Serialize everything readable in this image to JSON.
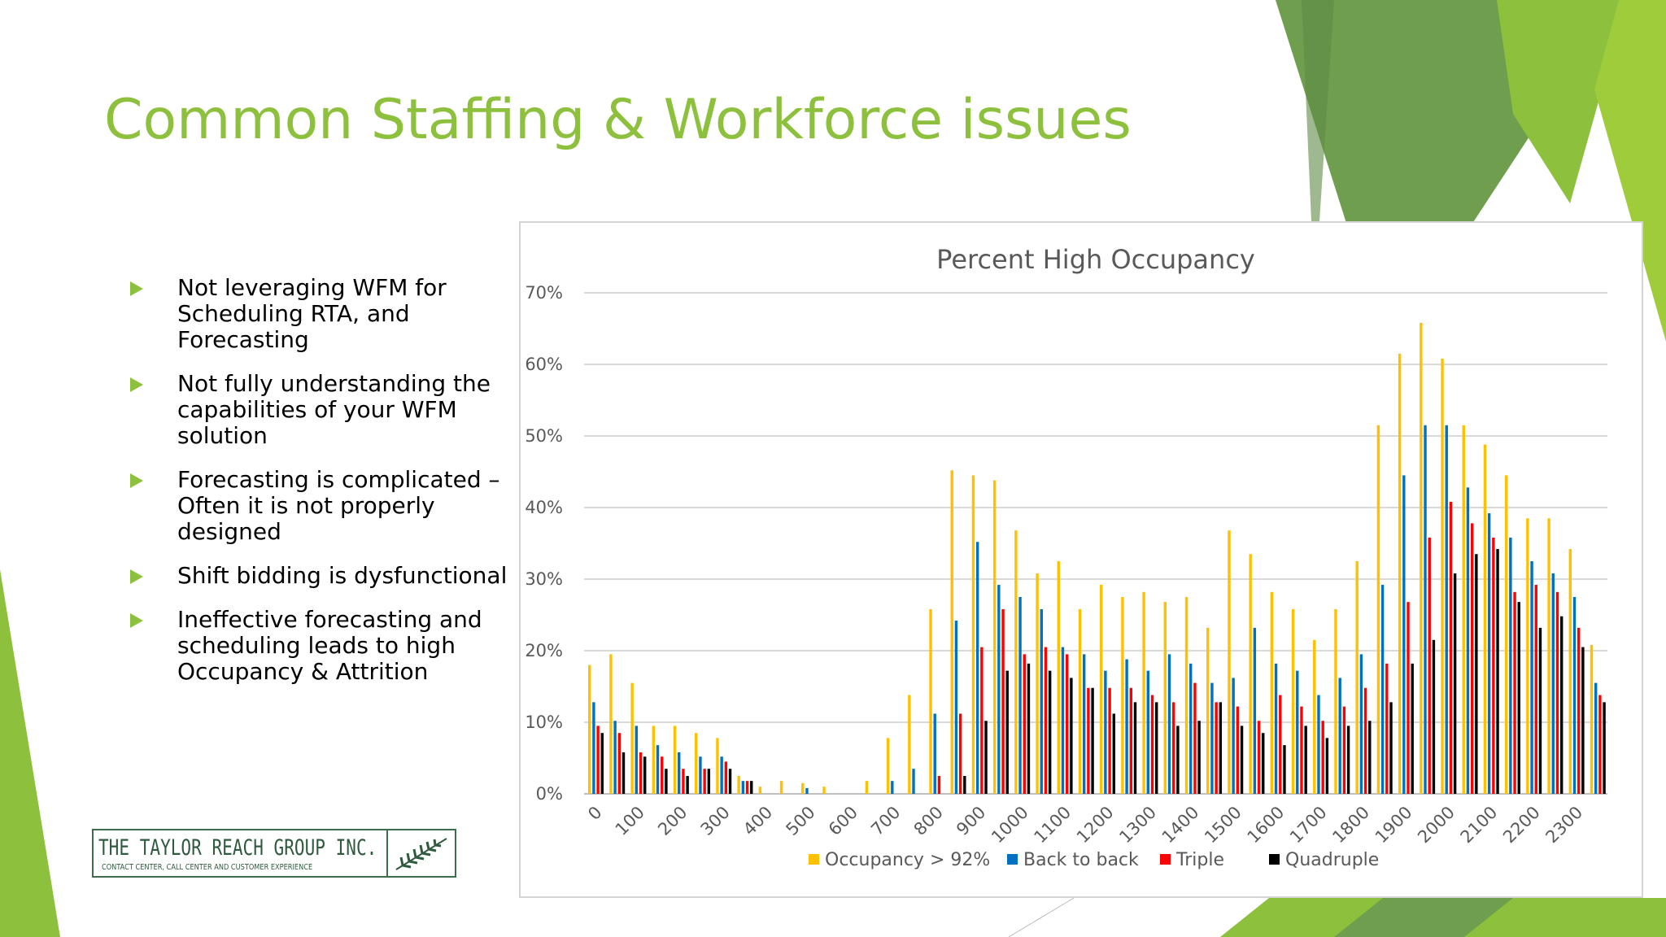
{
  "slide": {
    "title": "Common Staffing & Workforce issues",
    "accent_color": "#8dc03c",
    "bullet_icon": "triangle-right-icon",
    "bullets": [
      "Not leveraging WFM for Scheduling RTA, and Forecasting",
      "Not fully understanding the capabilities of your WFM solution",
      "Forecasting is complicated – Often it is not properly designed",
      "Shift bidding is dysfunctional",
      "Ineffective forecasting and scheduling leads to high Occupancy & Attrition"
    ]
  },
  "logo": {
    "name": "THE TAYLOR REACH GROUP INC.",
    "tagline": "CONTACT CENTER, CALL CENTER AND CUSTOMER EXPERIENCE",
    "icon": "fern-icon"
  },
  "chart_data": {
    "type": "bar",
    "title": "Percent High Occupancy",
    "xlabel": "",
    "ylabel": "",
    "ylim": [
      0,
      70
    ],
    "yticks": [
      "0%",
      "10%",
      "20%",
      "30%",
      "40%",
      "50%",
      "60%",
      "70%"
    ],
    "grid": true,
    "legend": "bottom",
    "x_tick_labels": [
      "0",
      "100",
      "200",
      "300",
      "400",
      "500",
      "600",
      "700",
      "800",
      "900",
      "1000",
      "1100",
      "1200",
      "1300",
      "1400",
      "1500",
      "1600",
      "1700",
      "1800",
      "1900",
      "2000",
      "2100",
      "2200",
      "2300"
    ],
    "categories": [
      "0",
      "30",
      "100",
      "130",
      "200",
      "230",
      "300",
      "330",
      "400",
      "430",
      "500",
      "530",
      "600",
      "630",
      "700",
      "730",
      "800",
      "830",
      "900",
      "930",
      "1000",
      "1030",
      "1100",
      "1130",
      "1200",
      "1230",
      "1300",
      "1330",
      "1400",
      "1430",
      "1500",
      "1530",
      "1600",
      "1630",
      "1700",
      "1730",
      "1800",
      "1830",
      "1900",
      "1930",
      "2000",
      "2030",
      "2100",
      "2130",
      "2200",
      "2230",
      "2300",
      "2330"
    ],
    "series": [
      {
        "name": "Occupancy > 92%",
        "color": "#ffc000",
        "values": [
          18,
          19.5,
          15.5,
          9.5,
          9.5,
          8.5,
          7.8,
          2.5,
          1,
          1.8,
          1.5,
          1,
          0,
          1.8,
          7.8,
          13.8,
          25.8,
          45.2,
          44.5,
          43.8,
          36.8,
          30.8,
          32.5,
          25.8,
          29.2,
          27.5,
          28.2,
          26.8,
          27.5,
          23.2,
          36.8,
          33.5,
          28.2,
          25.8,
          21.5,
          25.8,
          32.5,
          51.5,
          61.5,
          65.8,
          60.8,
          51.5,
          48.8,
          44.5,
          38.5,
          38.5,
          34.2,
          20.8
        ]
      },
      {
        "name": "Back to back",
        "color": "#0070c0",
        "values": [
          12.8,
          10.2,
          9.5,
          6.8,
          5.8,
          5.2,
          5.2,
          1.8,
          0,
          0,
          0.8,
          0,
          0,
          0,
          1.8,
          3.5,
          11.2,
          24.2,
          35.2,
          29.2,
          27.5,
          25.8,
          20.5,
          19.5,
          17.2,
          18.8,
          17.2,
          19.5,
          18.2,
          15.5,
          16.2,
          23.2,
          18.2,
          17.2,
          13.8,
          16.2,
          19.5,
          29.2,
          44.5,
          51.5,
          51.5,
          42.8,
          39.2,
          35.8,
          32.5,
          30.8,
          27.5,
          15.5
        ]
      },
      {
        "name": "Triple",
        "color": "#ff0000",
        "values": [
          9.5,
          8.5,
          5.8,
          5.2,
          3.5,
          3.5,
          4.5,
          1.8,
          0,
          0,
          0,
          0,
          0,
          0,
          0,
          0,
          2.5,
          11.2,
          20.5,
          25.8,
          19.5,
          20.5,
          19.5,
          14.8,
          14.8,
          14.8,
          13.8,
          12.8,
          15.5,
          12.8,
          12.2,
          10.2,
          13.8,
          12.2,
          10.2,
          12.2,
          14.8,
          18.2,
          26.8,
          35.8,
          40.8,
          37.8,
          35.8,
          28.2,
          29.2,
          28.2,
          23.2,
          13.8
        ]
      },
      {
        "name": "Quadruple",
        "color": "#000000",
        "values": [
          8.5,
          5.8,
          5.2,
          3.5,
          2.5,
          3.5,
          3.5,
          1.8,
          0,
          0,
          0,
          0,
          0,
          0,
          0,
          0,
          0,
          2.5,
          10.2,
          17.2,
          18.2,
          17.2,
          16.2,
          14.8,
          11.2,
          12.8,
          12.8,
          9.5,
          10.2,
          12.8,
          9.5,
          8.5,
          6.8,
          9.5,
          7.8,
          9.5,
          10.2,
          12.8,
          18.2,
          21.5,
          30.8,
          33.5,
          34.2,
          26.8,
          23.2,
          24.8,
          20.5,
          12.8
        ]
      }
    ]
  }
}
